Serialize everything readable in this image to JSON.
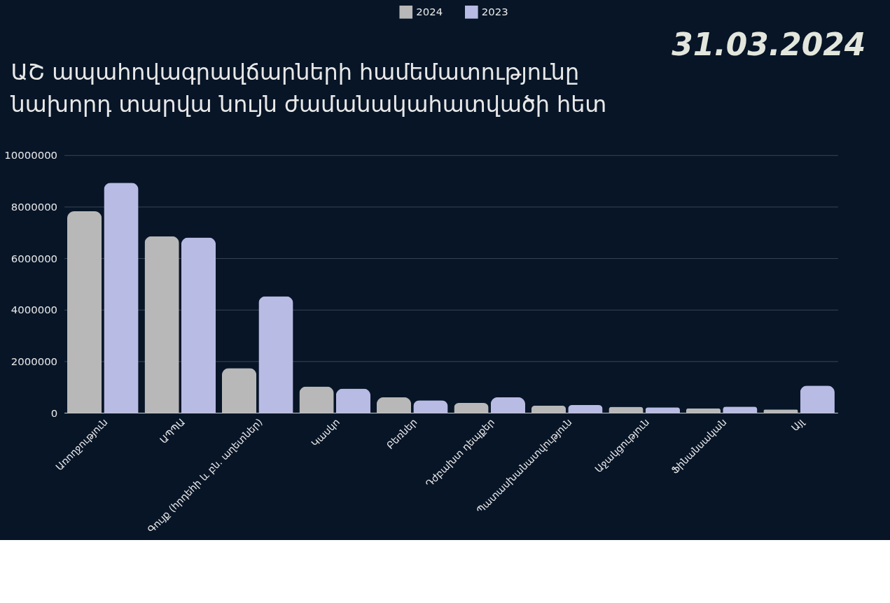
{
  "chart_data": {
    "type": "bar",
    "title": [
      "ԱՇ ապահովագրավճարների համեմատությունը",
      "նախորդ տարվա նույն ժամանակահատվածի հետ"
    ],
    "annotations": [
      "31.03.2024"
    ],
    "categories": [
      "Առողջություն",
      "ԱՊՊԱ",
      "Գույք (հրդեհի և բն. աղետներ)",
      "Կասկո",
      "Բեռներ",
      "Դժբախտ դեպքեր",
      "Պատասխանատվություն",
      "Աջակցություն",
      "Ֆինանսական",
      "Այլ"
    ],
    "series": [
      {
        "name": "2024",
        "color": "#b8b8b8",
        "values": [
          7820000,
          6850000,
          1730000,
          1020000,
          600000,
          380000,
          280000,
          230000,
          170000,
          130000
        ]
      },
      {
        "name": "2023",
        "color": "#b8bbe3",
        "values": [
          8930000,
          6800000,
          4520000,
          940000,
          480000,
          600000,
          300000,
          210000,
          240000,
          1050000
        ]
      }
    ],
    "ylim": [
      0,
      10000000
    ],
    "yticks": [
      0,
      2000000,
      4000000,
      6000000,
      8000000,
      10000000
    ],
    "grid": "y",
    "legend": "top"
  }
}
